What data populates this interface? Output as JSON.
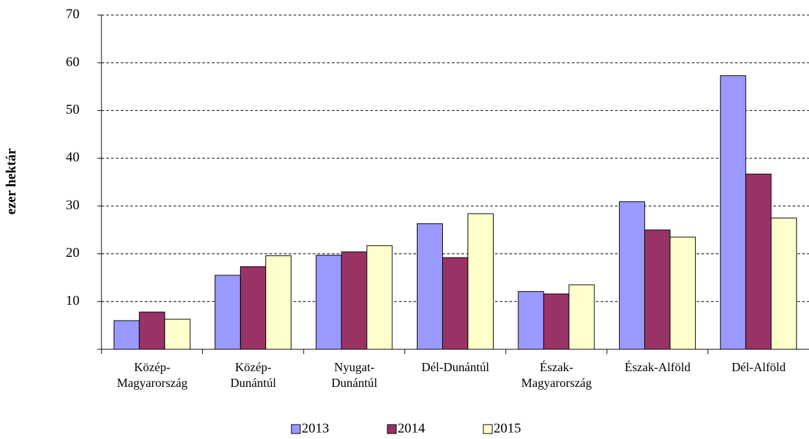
{
  "chart_data": {
    "type": "bar",
    "y_label": "ezer hektár",
    "categories": [
      "Közép-\nMagyarország",
      "Közép-\nDunántúl",
      "Nyugat-\nDunántúl",
      "Dél-Dunántúl",
      "Észak-\nMagyarország",
      "Észak-Alföld",
      "Dél-Alföld"
    ],
    "series": [
      {
        "name": "2013",
        "color": "#9999ff",
        "values": [
          6.0,
          15.5,
          19.7,
          26.3,
          12.1,
          30.9,
          57.3
        ]
      },
      {
        "name": "2014",
        "color": "#993366",
        "values": [
          7.8,
          17.3,
          20.4,
          19.2,
          11.6,
          25.0,
          36.7
        ]
      },
      {
        "name": "2015",
        "color": "#ffffcc",
        "values": [
          6.3,
          19.6,
          21.7,
          28.4,
          13.5,
          23.5,
          27.5
        ]
      }
    ],
    "ylim": [
      0,
      70
    ],
    "yticks": [
      10,
      20,
      30,
      40,
      50,
      60,
      70
    ],
    "grid": true,
    "legend": "bottom"
  }
}
